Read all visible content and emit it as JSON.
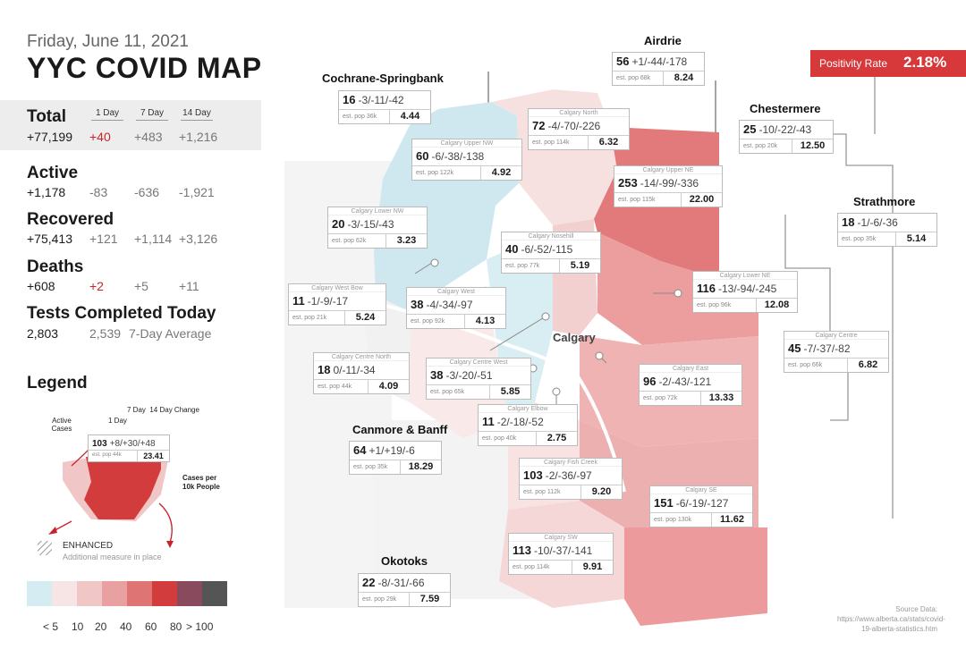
{
  "header": {
    "date": "Friday, June 11, 2021",
    "title": "YYC COVID MAP"
  },
  "columns": {
    "c1": "1 Day",
    "c7": "7 Day",
    "c14": "14 Day"
  },
  "stats": {
    "total": {
      "label": "Total",
      "value": "+77,199",
      "d1": "+40",
      "d7": "+483",
      "d14": "+1,216"
    },
    "active": {
      "label": "Active",
      "value": "+1,178",
      "d1": "-83",
      "d7": "-636",
      "d14": "-1,921"
    },
    "recovered": {
      "label": "Recovered",
      "value": "+75,413",
      "d1": "+121",
      "d7": "+1,114",
      "d14": "+3,126"
    },
    "deaths": {
      "label": "Deaths",
      "value": "+608",
      "d1": "+2",
      "d7": "+5",
      "d14": "+11"
    },
    "tests": {
      "label": "Tests Completed Today",
      "value": "2,803",
      "avg": "2,539",
      "avg_label": "7-Day Average"
    }
  },
  "legend": {
    "title": "Legend",
    "active_cases": "Active Cases",
    "day1": "1 Day",
    "day7_14": "7 Day  14 Day Change",
    "sample_n": "103",
    "sample_change": "+8/+30/+48",
    "sample_pop": "est. pop 44k",
    "sample_rate": "23.41",
    "cases_per": "Cases per 10k People",
    "enhanced": "ENHANCED",
    "enhanced_sub": "Additional measure in place",
    "scale_labels": [
      "< 5",
      "10",
      "20",
      "40",
      "60",
      "80",
      "> 100"
    ],
    "scale_colors": [
      "#d4ecf2",
      "#f7e4e4",
      "#f0c6c6",
      "#e8a0a0",
      "#de7474",
      "#d33c3c",
      "#8a4a5e",
      "#555555"
    ]
  },
  "positivity": {
    "label": "Positivity Rate",
    "value": "2.18%"
  },
  "map": {
    "city_label": "Calgary",
    "regions": {
      "airdrie": "Airdrie",
      "cochrane": "Cochrane-Springbank",
      "chestermere": "Chestermere",
      "strathmore": "Strathmore",
      "canmore": "Canmore & Banff",
      "okotoks": "Okotoks"
    },
    "boxes": {
      "airdrie": {
        "cap": "",
        "n": "56",
        "ch": "+1/-44/-178",
        "pop": "est. pop 68k",
        "rate": "8.24"
      },
      "cochrane": {
        "cap": "",
        "n": "16",
        "ch": "-3/-11/-42",
        "pop": "est. pop 36k",
        "rate": "4.44"
      },
      "chestermere": {
        "cap": "",
        "n": "25",
        "ch": "-10/-22/-43",
        "pop": "est. pop 20k",
        "rate": "12.50"
      },
      "strathmore": {
        "cap": "",
        "n": "18",
        "ch": "-1/-6/-36",
        "pop": "est. pop 35k",
        "rate": "5.14"
      },
      "canmore": {
        "cap": "",
        "n": "64",
        "ch": "+1/+19/-6",
        "pop": "est. pop 35k",
        "rate": "18.29"
      },
      "okotoks": {
        "cap": "",
        "n": "22",
        "ch": "-8/-31/-66",
        "pop": "est. pop 29k",
        "rate": "7.59"
      },
      "north": {
        "cap": "Calgary North",
        "n": "72",
        "ch": "-4/-70/-226",
        "pop": "est. pop 114k",
        "rate": "6.32"
      },
      "uppernw": {
        "cap": "Calgary Upper NW",
        "n": "60",
        "ch": "-6/-38/-138",
        "pop": "est. pop 122k",
        "rate": "4.92"
      },
      "upperne": {
        "cap": "Calgary Upper NE",
        "n": "253",
        "ch": "-14/-99/-336",
        "pop": "est. pop 115k",
        "rate": "22.00"
      },
      "lowernw": {
        "cap": "Calgary Lower NW",
        "n": "20",
        "ch": "-3/-15/-43",
        "pop": "est. pop 62k",
        "rate": "3.23"
      },
      "nosehill": {
        "cap": "Calgary Nosehill",
        "n": "40",
        "ch": "-6/-52/-115",
        "pop": "est. pop 77k",
        "rate": "5.19"
      },
      "westbow": {
        "cap": "Calgary West Bow",
        "n": "11",
        "ch": "-1/-9/-17",
        "pop": "est. pop 21k",
        "rate": "5.24"
      },
      "west": {
        "cap": "Calgary West",
        "n": "38",
        "ch": "-4/-34/-97",
        "pop": "est. pop 92k",
        "rate": "4.13"
      },
      "lowerne": {
        "cap": "Calgary Lower NE",
        "n": "116",
        "ch": "-13/-94/-245",
        "pop": "est. pop 96k",
        "rate": "12.08"
      },
      "centrenorth": {
        "cap": "Calgary Centre North",
        "n": "18",
        "ch": "0/-11/-34",
        "pop": "est. pop 44k",
        "rate": "4.09"
      },
      "centrewest": {
        "cap": "Calgary Centre West",
        "n": "38",
        "ch": "-3/-20/-51",
        "pop": "est. pop 65k",
        "rate": "5.85"
      },
      "centre": {
        "cap": "Calgary Centre",
        "n": "45",
        "ch": "-7/-37/-82",
        "pop": "est. pop 66k",
        "rate": "6.82"
      },
      "east": {
        "cap": "Calgary East",
        "n": "96",
        "ch": "-2/-43/-121",
        "pop": "est. pop 72k",
        "rate": "13.33"
      },
      "elbow": {
        "cap": "Calgary Elbow",
        "n": "11",
        "ch": "-2/-18/-52",
        "pop": "est. pop 40k",
        "rate": "2.75"
      },
      "fishcreek": {
        "cap": "Calgary Fish Creek",
        "n": "103",
        "ch": "-2/-36/-97",
        "pop": "est. pop 112k",
        "rate": "9.20"
      },
      "se": {
        "cap": "Calgary SE",
        "n": "151",
        "ch": "-6/-19/-127",
        "pop": "est. pop 130k",
        "rate": "11.62"
      },
      "sw": {
        "cap": "Calgary SW",
        "n": "113",
        "ch": "-10/-37/-141",
        "pop": "est. pop 114k",
        "rate": "9.91"
      }
    }
  },
  "source": {
    "label": "Source Data:",
    "url": "https://www.alberta.ca/stats/covid-19-alberta-statistics.htm"
  }
}
